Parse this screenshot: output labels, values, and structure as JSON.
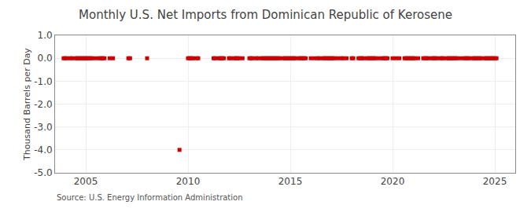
{
  "chart_data": {
    "type": "scatter",
    "title": "Monthly U.S. Net Imports from Dominican Republic of Kerosene",
    "ylabel": "Thousand Barrels per Day",
    "source": "Source: U.S. Energy Information Administration",
    "color": "#cc0000",
    "marker": "square",
    "grid": true,
    "xlim": [
      2003.5,
      2026.0
    ],
    "xticks": [
      2005,
      2010,
      2015,
      2020,
      2025
    ],
    "ylim": [
      -5.0,
      1.0
    ],
    "yticks": [
      {
        "value": 1.0,
        "label": "1.0"
      },
      {
        "value": 0.0,
        "label": "0.0"
      },
      {
        "value": -1.0,
        "label": "-1.0"
      },
      {
        "value": -2.0,
        "label": "-2.0"
      },
      {
        "value": -3.0,
        "label": "-3.0"
      },
      {
        "value": -4.0,
        "label": "-4.0"
      },
      {
        "value": -5.0,
        "label": "-5.0"
      }
    ],
    "x": [
      2003.917,
      2004.0,
      2004.083,
      2004.25,
      2004.333,
      2004.5,
      2004.583,
      2004.667,
      2004.75,
      2004.833,
      2004.917,
      2005.0,
      2005.083,
      2005.167,
      2005.25,
      2005.333,
      2005.5,
      2005.667,
      2005.75,
      2005.833,
      2005.917,
      2006.167,
      2006.333,
      2007.083,
      2007.167,
      2008.0,
      2009.583,
      2010.0,
      2010.083,
      2010.167,
      2010.25,
      2010.417,
      2010.5,
      2011.25,
      2011.333,
      2011.5,
      2011.583,
      2011.667,
      2011.75,
      2012.0,
      2012.083,
      2012.25,
      2012.333,
      2012.417,
      2012.5,
      2012.667,
      2013.0,
      2013.083,
      2013.167,
      2013.333,
      2013.417,
      2013.583,
      2013.667,
      2013.75,
      2013.833,
      2013.917,
      2014.0,
      2014.083,
      2014.167,
      2014.25,
      2014.333,
      2014.417,
      2014.5,
      2014.667,
      2014.75,
      2014.833,
      2014.917,
      2015.0,
      2015.083,
      2015.167,
      2015.25,
      2015.417,
      2015.5,
      2015.583,
      2015.667,
      2015.75,
      2016.0,
      2016.167,
      2016.333,
      2016.417,
      2016.583,
      2016.667,
      2016.75,
      2016.833,
      2016.917,
      2017.0,
      2017.083,
      2017.167,
      2017.333,
      2017.5,
      2017.583,
      2017.75,
      2018.0,
      2018.083,
      2018.333,
      2018.417,
      2018.5,
      2018.583,
      2018.75,
      2018.833,
      2018.917,
      2019.0,
      2019.083,
      2019.167,
      2019.333,
      2019.5,
      2019.583,
      2019.667,
      2019.75,
      2020.0,
      2020.167,
      2020.333,
      2020.583,
      2020.667,
      2020.75,
      2020.833,
      2020.917,
      2021.0,
      2021.083,
      2021.25,
      2021.5,
      2021.583,
      2021.667,
      2021.75,
      2021.917,
      2022.0,
      2022.083,
      2022.167,
      2022.333,
      2022.417,
      2022.5,
      2022.667,
      2022.75,
      2022.833,
      2022.917,
      2023.0,
      2023.083,
      2023.167,
      2023.333,
      2023.5,
      2023.583,
      2023.667,
      2023.75,
      2023.917,
      2024.0,
      2024.083,
      2024.167,
      2024.25,
      2024.333,
      2024.5,
      2024.583,
      2024.667,
      2024.75,
      2024.833,
      2024.917,
      2025.0,
      2025.083
    ],
    "values": [
      0.0,
      0.0,
      0.0,
      0.0,
      0.0,
      0.0,
      0.0,
      0.0,
      0.0,
      0.0,
      0.0,
      0.0,
      0.0,
      0.0,
      0.0,
      0.0,
      0.0,
      0.0,
      0.0,
      0.0,
      0.0,
      0.0,
      0.0,
      0.0,
      0.0,
      0.0,
      -4.0,
      0.0,
      0.0,
      0.0,
      0.0,
      0.0,
      0.0,
      0.0,
      0.0,
      0.0,
      0.0,
      0.0,
      0.0,
      0.0,
      0.0,
      0.0,
      0.0,
      0.0,
      0.0,
      0.0,
      0.0,
      0.0,
      0.0,
      0.0,
      0.0,
      0.0,
      0.0,
      0.0,
      0.0,
      0.0,
      0.0,
      0.0,
      0.0,
      0.0,
      0.0,
      0.0,
      0.0,
      0.0,
      0.0,
      0.0,
      0.0,
      0.0,
      0.0,
      0.0,
      0.0,
      0.0,
      0.0,
      0.0,
      0.0,
      0.0,
      0.0,
      0.0,
      0.0,
      0.0,
      0.0,
      0.0,
      0.0,
      0.0,
      0.0,
      0.0,
      0.0,
      0.0,
      0.0,
      0.0,
      0.0,
      0.0,
      0.0,
      0.0,
      0.0,
      0.0,
      0.0,
      0.0,
      0.0,
      0.0,
      0.0,
      0.0,
      0.0,
      0.0,
      0.0,
      0.0,
      0.0,
      0.0,
      0.0,
      0.0,
      0.0,
      0.0,
      0.0,
      0.0,
      0.0,
      0.0,
      0.0,
      0.0,
      0.0,
      0.0,
      0.0,
      0.0,
      0.0,
      0.0,
      0.0,
      0.0,
      0.0,
      0.0,
      0.0,
      0.0,
      0.0,
      0.0,
      0.0,
      0.0,
      0.0,
      0.0,
      0.0,
      0.0,
      0.0,
      0.0,
      0.0,
      0.0,
      0.0,
      0.0,
      0.0,
      0.0,
      0.0,
      0.0,
      0.0,
      0.0,
      0.0,
      0.0,
      0.0,
      0.0,
      0.0,
      0.0,
      0.0
    ]
  }
}
